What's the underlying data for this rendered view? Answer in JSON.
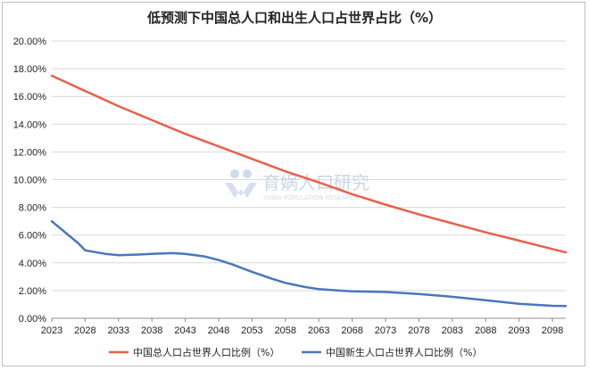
{
  "chart_data": {
    "type": "line",
    "title": "低预测下中国总人口和出生人口占世界占比（%）",
    "xlabel": "",
    "ylabel": "",
    "x_ticks": [
      "2023",
      "2028",
      "2033",
      "2038",
      "2043",
      "2048",
      "2053",
      "2058",
      "2063",
      "2068",
      "2073",
      "2078",
      "2083",
      "2088",
      "2093",
      "2098"
    ],
    "xlim": [
      2023,
      2100
    ],
    "ylim": [
      0,
      20
    ],
    "y_ticks": [
      "0.00%",
      "2.00%",
      "4.00%",
      "6.00%",
      "8.00%",
      "10.00%",
      "12.00%",
      "14.00%",
      "16.00%",
      "18.00%",
      "20.00%"
    ],
    "grid": "horizontal",
    "legend_position": "bottom",
    "series": [
      {
        "name": "中国总人口占世界人口比例（%）",
        "color": "#e8604c",
        "points": [
          [
            2023,
            17.5
          ],
          [
            2028,
            16.4
          ],
          [
            2033,
            15.3
          ],
          [
            2038,
            14.3
          ],
          [
            2043,
            13.3
          ],
          [
            2048,
            12.4
          ],
          [
            2053,
            11.5
          ],
          [
            2058,
            10.6
          ],
          [
            2063,
            9.8
          ],
          [
            2068,
            8.95
          ],
          [
            2073,
            8.2
          ],
          [
            2078,
            7.5
          ],
          [
            2083,
            6.85
          ],
          [
            2088,
            6.2
          ],
          [
            2093,
            5.6
          ],
          [
            2098,
            5.0
          ],
          [
            2100,
            4.75
          ]
        ]
      },
      {
        "name": "中国新生人口占世界人口比例（%）",
        "color": "#4a77bb",
        "points": [
          [
            2023,
            7.0
          ],
          [
            2025,
            6.2
          ],
          [
            2027,
            5.4
          ],
          [
            2028,
            4.9
          ],
          [
            2031,
            4.65
          ],
          [
            2033,
            4.55
          ],
          [
            2036,
            4.6
          ],
          [
            2038,
            4.65
          ],
          [
            2041,
            4.7
          ],
          [
            2043,
            4.65
          ],
          [
            2046,
            4.45
          ],
          [
            2048,
            4.2
          ],
          [
            2050,
            3.9
          ],
          [
            2053,
            3.35
          ],
          [
            2056,
            2.85
          ],
          [
            2058,
            2.55
          ],
          [
            2061,
            2.25
          ],
          [
            2063,
            2.1
          ],
          [
            2066,
            2.0
          ],
          [
            2068,
            1.95
          ],
          [
            2073,
            1.9
          ],
          [
            2078,
            1.75
          ],
          [
            2083,
            1.55
          ],
          [
            2088,
            1.3
          ],
          [
            2093,
            1.05
          ],
          [
            2098,
            0.9
          ],
          [
            2100,
            0.88
          ]
        ]
      }
    ]
  },
  "watermark": {
    "text": "育娲人口研究",
    "subtext": "YUWA POPULATION RESEARCH",
    "icon": "yuwa-logo-icon"
  }
}
